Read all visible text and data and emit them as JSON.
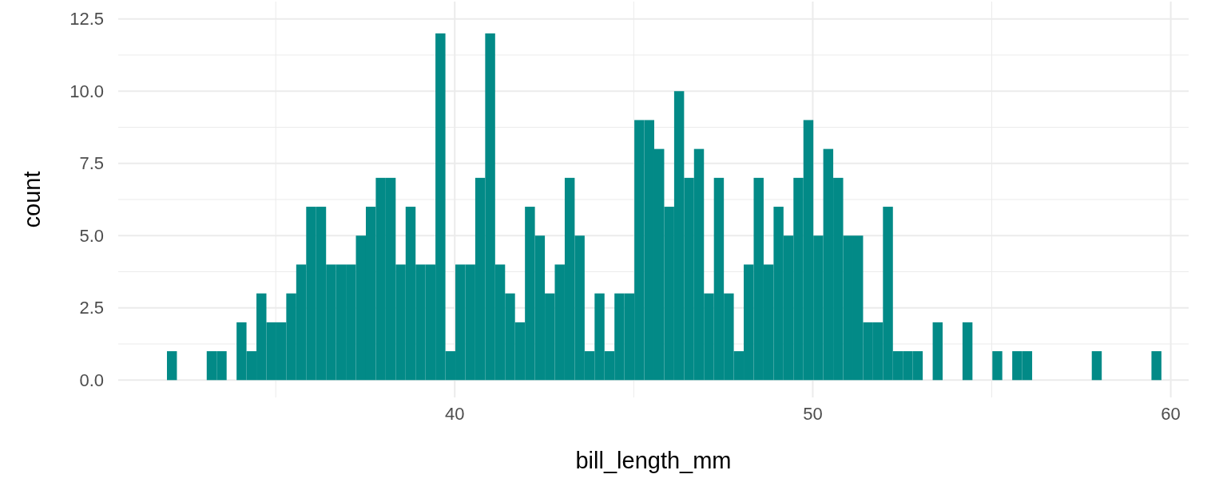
{
  "chart_data": {
    "type": "histogram",
    "xlabel": "bill_length_mm",
    "ylabel": "count",
    "color": "#028a87",
    "bins": [
      31.961,
      32.239,
      32.517,
      32.794,
      33.072,
      33.35,
      33.628,
      33.906,
      34.183,
      34.461,
      34.739,
      35.017,
      35.294,
      35.572,
      35.85,
      36.128,
      36.406,
      36.683,
      36.961,
      37.239,
      37.517,
      37.794,
      38.072,
      38.35,
      38.628,
      38.906,
      39.183,
      39.461,
      39.739,
      40.017,
      40.294,
      40.572,
      40.85,
      41.128,
      41.406,
      41.683,
      41.961,
      42.239,
      42.517,
      42.794,
      43.072,
      43.35,
      43.628,
      43.906,
      44.183,
      44.461,
      44.739,
      45.017,
      45.294,
      45.572,
      45.85,
      46.128,
      46.406,
      46.683,
      46.961,
      47.239,
      47.517,
      47.794,
      48.072,
      48.35,
      48.628,
      48.906,
      49.183,
      49.461,
      49.739,
      50.017,
      50.294,
      50.572,
      50.85,
      51.128,
      51.406,
      51.683,
      51.961,
      52.239,
      52.517,
      52.794,
      53.072,
      53.35,
      53.628,
      53.906,
      54.183,
      54.461,
      54.739,
      55.017,
      55.294,
      55.572,
      55.85,
      56.128,
      56.406,
      56.683,
      56.961,
      57.239,
      57.517,
      57.794,
      58.072,
      58.35,
      58.628,
      58.906,
      59.183,
      59.461,
      59.739
    ],
    "values": [
      1,
      0,
      0,
      0,
      1,
      1,
      0,
      2,
      1,
      3,
      2,
      2,
      3,
      4,
      6,
      6,
      4,
      4,
      4,
      5,
      6,
      7,
      7,
      4,
      6,
      4,
      4,
      12,
      1,
      4,
      4,
      7,
      12,
      4,
      3,
      2,
      6,
      5,
      3,
      4,
      7,
      5,
      1,
      3,
      1,
      3,
      3,
      9,
      9,
      8,
      6,
      10,
      7,
      8,
      3,
      7,
      3,
      1,
      4,
      7,
      4,
      6,
      5,
      7,
      9,
      5,
      8,
      7,
      5,
      5,
      2,
      2,
      6,
      1,
      1,
      1,
      0,
      2,
      0,
      0,
      2,
      0,
      0,
      1,
      0,
      1,
      1,
      0,
      0,
      0,
      0,
      0,
      0,
      1,
      0,
      0,
      0,
      0,
      0,
      1
    ],
    "xlim": [
      30.6,
      60.5
    ],
    "xticks": [
      40,
      50,
      60
    ],
    "ylim": [
      -0.6,
      13.1
    ],
    "yticks": [
      {
        "value": 0,
        "label": "0.0"
      },
      {
        "value": 2.5,
        "label": "2.5"
      },
      {
        "value": 5,
        "label": "5.0"
      },
      {
        "value": 7.5,
        "label": "7.5"
      },
      {
        "value": 10,
        "label": "10.0"
      },
      {
        "value": 12.5,
        "label": "12.5"
      }
    ],
    "grid": true
  }
}
